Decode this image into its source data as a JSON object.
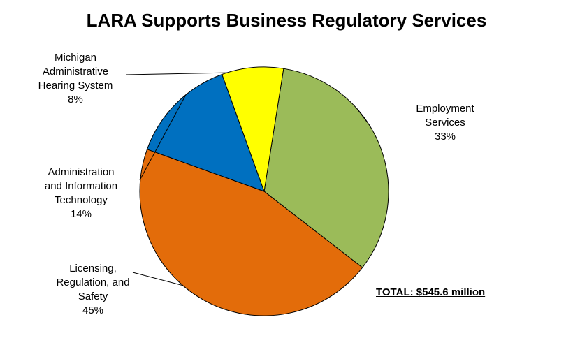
{
  "chart_data": {
    "type": "pie",
    "title": "LARA Supports Business Regulatory Services",
    "slices": [
      {
        "label": "Employment\nServices",
        "value": 33,
        "value_label": "33%",
        "color": "#9BBB59"
      },
      {
        "label": "Licensing,\nRegulation, and\nSafety",
        "value": 45,
        "value_label": "45%",
        "color": "#E36C0A"
      },
      {
        "label": "Administration\nand Information\nTechnology",
        "value": 14,
        "value_label": "14%",
        "color": "#0070C0"
      },
      {
        "label": "Michigan\nAdministrative\nHearing System",
        "value": 8,
        "value_label": "8%",
        "color": "#FFFF00"
      }
    ],
    "legend": "none",
    "annotation": "TOTAL: $545.6 million"
  }
}
